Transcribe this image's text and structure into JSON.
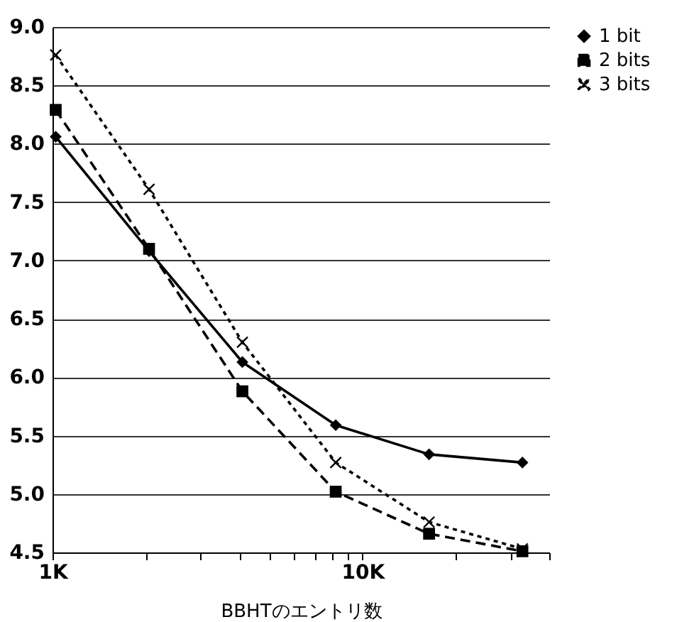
{
  "chart_data": {
    "type": "line",
    "xlabel": "BBHTのエントリ数",
    "log": "x",
    "x": [
      1024,
      2048,
      4096,
      8192,
      16384,
      32768
    ],
    "xlim": [
      1000,
      40000
    ],
    "xticks": [
      {
        "value": 1000,
        "label": "1K"
      },
      {
        "value": 2000,
        "label": null
      },
      {
        "value": 3000,
        "label": null
      },
      {
        "value": 4000,
        "label": null
      },
      {
        "value": 5000,
        "label": null
      },
      {
        "value": 6000,
        "label": null
      },
      {
        "value": 7000,
        "label": null
      },
      {
        "value": 8000,
        "label": null
      },
      {
        "value": 9000,
        "label": null
      },
      {
        "value": 10000,
        "label": "10K"
      },
      {
        "value": 20000,
        "label": null
      },
      {
        "value": 30000,
        "label": null
      },
      {
        "value": 40000,
        "label": null
      }
    ],
    "ylim": [
      4.5,
      9
    ],
    "yticks": [
      {
        "value": 4.5,
        "label": "4.5"
      },
      {
        "value": 5,
        "label": "5.0"
      },
      {
        "value": 5.5,
        "label": "5.5"
      },
      {
        "value": 6,
        "label": "6.0"
      },
      {
        "value": 6.5,
        "label": "6.5"
      },
      {
        "value": 7,
        "label": "7.0"
      },
      {
        "value": 7.5,
        "label": "7.5"
      },
      {
        "value": 8,
        "label": "8.0"
      },
      {
        "value": 8.5,
        "label": "8.5"
      },
      {
        "value": 9,
        "label": "9.0"
      }
    ],
    "grid": "y",
    "legend": "top right",
    "series": [
      {
        "name": "1 bit",
        "color": "#000000",
        "marker": "diamond",
        "line_style": "solid",
        "values": [
          8.06,
          7.08,
          6.13,
          5.59,
          5.34,
          5.27
        ]
      },
      {
        "name": "2 bits",
        "color": "#000000",
        "marker": "square",
        "line_style": "dashed",
        "values": [
          8.29,
          7.1,
          5.88,
          5.02,
          4.66,
          4.51
        ]
      },
      {
        "name": "3 bits",
        "color": "#000000",
        "marker": "cross",
        "line_style": "dotted",
        "values": [
          8.76,
          7.61,
          6.3,
          5.27,
          4.76,
          4.53
        ]
      }
    ]
  }
}
